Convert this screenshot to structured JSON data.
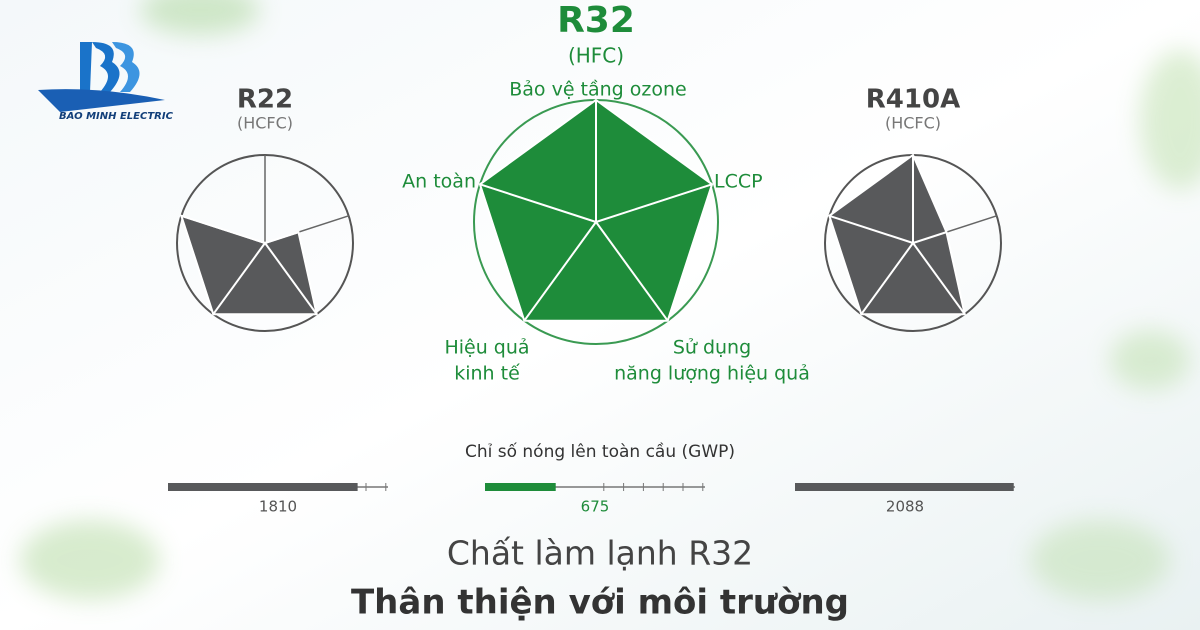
{
  "brand": "BAO MINH ELECTRIC",
  "headline": {
    "line1": "Chất làm lạnh R32",
    "line2": "Thân thiện với môi trường"
  },
  "chart_data": [
    {
      "type": "radar",
      "title": "R22",
      "subtitle": "(HCFC)",
      "color": "#58595b",
      "rlim": [
        0,
        5
      ],
      "values": [
        0,
        2,
        5,
        5,
        5
      ]
    },
    {
      "type": "radar",
      "title": "R32",
      "subtitle": "(HFC)",
      "color": "#1e8c3a",
      "rlim": [
        0,
        5
      ],
      "categories": [
        [
          "Bảo vệ tầng ozone"
        ],
        [
          "LCCP"
        ],
        [
          "Sử dụng",
          "năng lượng hiệu quả"
        ],
        [
          "Hiệu quả",
          "kinh tế"
        ],
        [
          "An toàn"
        ]
      ],
      "values": [
        5,
        5,
        5,
        5,
        5
      ]
    },
    {
      "type": "radar",
      "title": "R410A",
      "subtitle": "(HCFC)",
      "color": "#58595b",
      "rlim": [
        0,
        5
      ],
      "values": [
        5,
        2,
        5,
        5,
        5
      ]
    },
    {
      "type": "bar",
      "title": "Chỉ số nóng lên toàn cầu (GWP)",
      "xlim": [
        0,
        2100
      ],
      "values": [
        1810,
        675,
        2088
      ],
      "colors": [
        "#58595b",
        "#1e8c3a",
        "#58595b"
      ]
    }
  ]
}
